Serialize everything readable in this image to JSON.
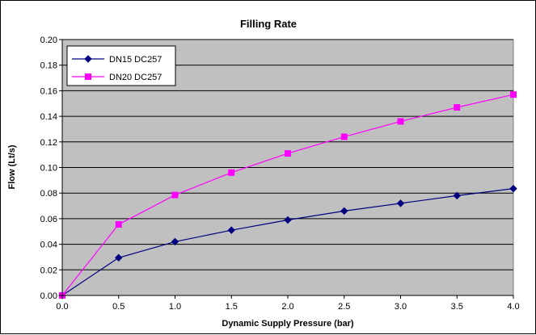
{
  "chart_data": {
    "type": "line",
    "title": "Filling Rate",
    "xlabel": "Dynamic Supply Pressure (bar)",
    "ylabel": "Flow (Lt/s)",
    "xlim": [
      0,
      4
    ],
    "ylim": [
      0,
      0.2
    ],
    "x_ticks": [
      "0.0",
      "0.5",
      "1.0",
      "1.5",
      "2.0",
      "2.5",
      "3.0",
      "3.5",
      "4.0"
    ],
    "y_ticks": [
      "0.00",
      "0.02",
      "0.04",
      "0.06",
      "0.08",
      "0.10",
      "0.12",
      "0.14",
      "0.16",
      "0.18",
      "0.20"
    ],
    "grid": true,
    "legend_position": "top-left",
    "plot_background": "#C0C0C0",
    "x": [
      0.0,
      0.5,
      1.0,
      1.5,
      2.0,
      2.5,
      3.0,
      3.5,
      4.0
    ],
    "series": [
      {
        "name": "DN15 DC257",
        "color": "#000080",
        "marker": "diamond",
        "values": [
          0.0,
          0.0295,
          0.042,
          0.051,
          0.059,
          0.066,
          0.072,
          0.078,
          0.0835
        ]
      },
      {
        "name": "DN20 DC257",
        "color": "#FF00FF",
        "marker": "square",
        "values": [
          0.0,
          0.0555,
          0.0785,
          0.096,
          0.111,
          0.124,
          0.136,
          0.147,
          0.157
        ]
      }
    ]
  }
}
